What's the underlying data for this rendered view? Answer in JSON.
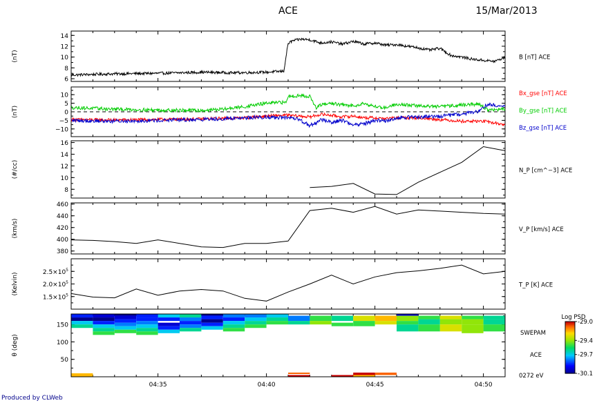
{
  "header": {
    "title": "ACE",
    "date": "15/Mar/2013"
  },
  "footer": {
    "credit": "Produced by CLWeb"
  },
  "colors": {
    "black": "#000000",
    "red": "#ff0000",
    "green": "#00cc00",
    "blue": "#0000cc",
    "label_blue": "#00008b"
  },
  "x_axis": {
    "start_min": 31.0,
    "end_min": 51.0,
    "ticks": [
      {
        "t": 35,
        "label": "04:35"
      },
      {
        "t": 40,
        "label": "04:40"
      },
      {
        "t": 45,
        "label": "04:45"
      },
      {
        "t": 50,
        "label": "04:50"
      }
    ]
  },
  "chart_data": [
    {
      "type": "line",
      "id": "B",
      "ylabel": "(nT)",
      "right_label": "B [nT] ACE",
      "ylim": [
        5.5,
        14.8
      ],
      "yticks": [
        {
          "v": 6,
          "label": "6"
        },
        {
          "v": 8,
          "label": "8"
        },
        {
          "v": 10,
          "label": "10"
        },
        {
          "v": 12,
          "label": "12"
        },
        {
          "v": 14,
          "label": "14"
        }
      ],
      "series": [
        {
          "color": "#000000",
          "noise": 0.25,
          "x": [
            31.0,
            33.0,
            35.0,
            37.0,
            38.5,
            40.0,
            40.8,
            40.9,
            41.0,
            41.2,
            41.6,
            42.0,
            42.5,
            43.0,
            43.5,
            44.0,
            44.5,
            45.0,
            45.5,
            46.0,
            46.5,
            47.0,
            47.5,
            48.0,
            48.5,
            49.0,
            49.5,
            50.0,
            50.5,
            51.0
          ],
          "y": [
            6.7,
            6.9,
            7.0,
            7.2,
            7.1,
            7.2,
            7.4,
            10.0,
            12.5,
            13.0,
            13.3,
            13.2,
            12.6,
            12.8,
            12.4,
            12.9,
            12.4,
            12.6,
            12.2,
            12.3,
            12.0,
            11.7,
            11.3,
            11.6,
            10.3,
            10.0,
            9.6,
            9.4,
            9.2,
            9.9
          ]
        }
      ]
    },
    {
      "type": "line",
      "id": "Bgse",
      "ylabel": "(nT)",
      "ylim": [
        -14.5,
        14.5
      ],
      "yticks": [
        {
          "v": -10,
          "label": "−10"
        },
        {
          "v": -5,
          "label": "−5"
        },
        {
          "v": 0,
          "label": "0"
        },
        {
          "v": 5,
          "label": "5"
        },
        {
          "v": 10,
          "label": "10"
        }
      ],
      "zero_line": true,
      "series": [
        {
          "name": "Bx_gse [nT] ACE",
          "color": "#ff0000",
          "noise": 0.9,
          "x": [
            31.0,
            33.0,
            35.0,
            37.0,
            39.0,
            40.0,
            40.9,
            41.5,
            42.0,
            42.5,
            43.0,
            43.5,
            44.0,
            44.5,
            45.0,
            45.5,
            46.0,
            47.0,
            48.0,
            49.0,
            50.0,
            50.5,
            51.0
          ],
          "y": [
            -4.5,
            -4.8,
            -4.5,
            -4.2,
            -3.5,
            -2.5,
            -2.0,
            -2.5,
            -3.0,
            -1.5,
            -2.0,
            -3.0,
            -2.5,
            -3.5,
            -3.5,
            -4.0,
            -3.5,
            -3.5,
            -4.5,
            -5.5,
            -5.5,
            -6.5,
            -7.5
          ]
        },
        {
          "name": "By_gse [nT] ACE",
          "color": "#00cc00",
          "noise": 1.0,
          "x": [
            31.0,
            33.0,
            35.0,
            37.0,
            38.0,
            39.0,
            40.0,
            40.9,
            41.0,
            41.5,
            42.0,
            42.3,
            42.5,
            43.0,
            43.5,
            44.0,
            44.5,
            45.0,
            45.5,
            46.0,
            47.0,
            48.0,
            49.0,
            49.8,
            50.2,
            51.0
          ],
          "y": [
            2.5,
            1.5,
            1.0,
            0.8,
            1.5,
            3.0,
            5.0,
            5.5,
            9.0,
            9.5,
            9.0,
            2.0,
            4.0,
            5.0,
            4.0,
            3.5,
            5.0,
            3.0,
            2.5,
            4.5,
            3.5,
            3.0,
            4.0,
            4.5,
            1.0,
            1.5
          ]
        },
        {
          "name": "Bz_gse [nT] ACE",
          "color": "#0000cc",
          "noise": 1.1,
          "x": [
            31.0,
            33.0,
            35.0,
            37.0,
            39.0,
            40.0,
            40.9,
            41.5,
            42.0,
            42.3,
            42.5,
            43.0,
            43.5,
            44.0,
            44.5,
            45.0,
            45.5,
            46.0,
            47.0,
            48.0,
            49.0,
            49.8,
            50.2,
            51.0
          ],
          "y": [
            -5.0,
            -5.5,
            -5.0,
            -4.5,
            -3.5,
            -3.0,
            -3.5,
            -4.5,
            -8.0,
            -6.5,
            -4.5,
            -6.0,
            -5.0,
            -7.5,
            -7.0,
            -5.0,
            -5.5,
            -3.5,
            -3.0,
            -2.5,
            -1.5,
            0.5,
            4.5,
            3.0
          ]
        }
      ]
    },
    {
      "type": "line",
      "id": "NP",
      "ylabel": "(#/cc)",
      "right_label": "N_P [cm^−3] ACE",
      "ylim": [
        6.5,
        16.3
      ],
      "yticks": [
        {
          "v": 8,
          "label": "8"
        },
        {
          "v": 10,
          "label": "10"
        },
        {
          "v": 12,
          "label": "12"
        },
        {
          "v": 14,
          "label": "14"
        },
        {
          "v": 16,
          "label": "16"
        }
      ],
      "series": [
        {
          "color": "#000000",
          "noise": 0,
          "x": [
            42.0,
            43.0,
            44.0,
            45.0,
            46.0,
            47.0,
            48.0,
            49.0,
            50.0,
            51.0
          ],
          "y": [
            8.3,
            8.5,
            9.0,
            7.2,
            7.1,
            9.2,
            10.9,
            12.6,
            15.3,
            14.6
          ]
        }
      ]
    },
    {
      "type": "line",
      "id": "VP",
      "ylabel": "(km/s)",
      "right_label": "V_P [km/s] ACE",
      "ylim": [
        375,
        462
      ],
      "yticks": [
        {
          "v": 380,
          "label": "380"
        },
        {
          "v": 400,
          "label": "400"
        },
        {
          "v": 420,
          "label": "420"
        },
        {
          "v": 440,
          "label": "440"
        },
        {
          "v": 460,
          "label": "460"
        }
      ],
      "series": [
        {
          "color": "#000000",
          "noise": 0,
          "x": [
            31.0,
            32.0,
            33.0,
            34.0,
            35.0,
            36.0,
            37.0,
            38.0,
            39.0,
            40.0,
            41.0,
            42.0,
            43.0,
            44.0,
            45.0,
            46.0,
            47.0,
            48.0,
            49.0,
            50.0,
            51.0
          ],
          "y": [
            399,
            398,
            396,
            393,
            399,
            393,
            387,
            386,
            393,
            393,
            397,
            449,
            453,
            446,
            456,
            443,
            450,
            448,
            446,
            444,
            443
          ]
        }
      ]
    },
    {
      "type": "line",
      "id": "TP",
      "ylabel": "(Kelvin)",
      "right_label": "T_P [K] ACE",
      "ylim": [
        100000,
        300000
      ],
      "yticks": [
        {
          "v": 150000,
          "label": "1.5×10",
          "exp": "5"
        },
        {
          "v": 200000,
          "label": "2.0×10",
          "exp": "5"
        },
        {
          "v": 250000,
          "label": "2.5×10",
          "exp": "5"
        }
      ],
      "series": [
        {
          "color": "#000000",
          "noise": 0,
          "x": [
            31.0,
            32.0,
            33.0,
            34.0,
            35.0,
            36.0,
            37.0,
            38.0,
            39.0,
            40.0,
            41.0,
            42.0,
            43.0,
            44.0,
            45.0,
            46.0,
            47.0,
            48.0,
            49.0,
            50.0,
            51.0
          ],
          "y": [
            162000,
            148000,
            145000,
            180000,
            155000,
            172000,
            178000,
            172000,
            143000,
            132000,
            168000,
            200000,
            235000,
            200000,
            228000,
            245000,
            252000,
            262000,
            275000,
            240000,
            250000
          ]
        }
      ]
    },
    {
      "type": "heatmap",
      "id": "SWEPAM",
      "ylabel": "θ (deg)",
      "right_label": "SWEPAM",
      "right_label2": "ACE",
      "energy_label": "0272 eV",
      "ylim": [
        0,
        180
      ],
      "yticks": [
        {
          "v": 50,
          "label": "50"
        },
        {
          "v": 100,
          "label": "100"
        },
        {
          "v": 150,
          "label": "150"
        }
      ],
      "colorbar": {
        "title": "Log PSD",
        "min": -30.1,
        "max": -29.0,
        "ticks": [
          {
            "v": -29.0,
            "label": "-29.0"
          },
          {
            "v": -29.4,
            "label": "-29.4"
          },
          {
            "v": -29.7,
            "label": "-29.7"
          },
          {
            "v": -30.1,
            "label": "-30.1"
          }
        ]
      },
      "columns": [
        31.0,
        32.0,
        33.0,
        34.0,
        35.0,
        36.0,
        37.0,
        38.0,
        39.0,
        40.0,
        41.0,
        42.0,
        43.0,
        44.0,
        45.0,
        46.0,
        47.0,
        48.0,
        49.0,
        50.0,
        51.0
      ],
      "cells": [
        {
          "c": 0,
          "th0": 160,
          "th1": 170,
          "v": -30.1
        },
        {
          "c": 0,
          "th0": 170,
          "th1": 180,
          "v": -29.9
        },
        {
          "c": 0,
          "th0": 150,
          "th1": 160,
          "v": -29.7
        },
        {
          "c": 0,
          "th0": 140,
          "th1": 150,
          "v": -29.6
        },
        {
          "c": 0,
          "th0": 0,
          "th1": 10,
          "v": -29.2
        },
        {
          "c": 1,
          "th0": 170,
          "th1": 180,
          "v": -30.0
        },
        {
          "c": 1,
          "th0": 160,
          "th1": 170,
          "v": -30.1
        },
        {
          "c": 1,
          "th0": 150,
          "th1": 160,
          "v": -29.9
        },
        {
          "c": 1,
          "th0": 140,
          "th1": 150,
          "v": -29.7
        },
        {
          "c": 1,
          "th0": 130,
          "th1": 140,
          "v": -29.6
        },
        {
          "c": 1,
          "th0": 120,
          "th1": 130,
          "v": -29.5
        },
        {
          "c": 2,
          "th0": 175,
          "th1": 180,
          "v": -30.2
        },
        {
          "c": 2,
          "th0": 165,
          "th1": 175,
          "v": -30.0
        },
        {
          "c": 2,
          "th0": 155,
          "th1": 165,
          "v": -29.9
        },
        {
          "c": 2,
          "th0": 145,
          "th1": 155,
          "v": -29.8
        },
        {
          "c": 2,
          "th0": 135,
          "th1": 145,
          "v": -29.7
        },
        {
          "c": 2,
          "th0": 125,
          "th1": 135,
          "v": -29.5
        },
        {
          "c": 3,
          "th0": 170,
          "th1": 180,
          "v": -29.9
        },
        {
          "c": 3,
          "th0": 160,
          "th1": 170,
          "v": -29.9
        },
        {
          "c": 3,
          "th0": 150,
          "th1": 160,
          "v": -29.8
        },
        {
          "c": 3,
          "th0": 140,
          "th1": 150,
          "v": -29.7
        },
        {
          "c": 3,
          "th0": 130,
          "th1": 140,
          "v": -29.6
        },
        {
          "c": 3,
          "th0": 120,
          "th1": 130,
          "v": -29.5
        },
        {
          "c": 4,
          "th0": 170,
          "th1": 180,
          "v": -29.7
        },
        {
          "c": 4,
          "th0": 160,
          "th1": 170,
          "v": -29.9
        },
        {
          "c": 4,
          "th0": 145,
          "th1": 155,
          "v": -30.0
        },
        {
          "c": 4,
          "th0": 135,
          "th1": 145,
          "v": -29.9
        },
        {
          "c": 4,
          "th0": 125,
          "th1": 135,
          "v": -29.7
        },
        {
          "c": 5,
          "th0": 170,
          "th1": 180,
          "v": -29.6
        },
        {
          "c": 5,
          "th0": 160,
          "th1": 170,
          "v": -29.8
        },
        {
          "c": 5,
          "th0": 150,
          "th1": 160,
          "v": -29.9
        },
        {
          "c": 5,
          "th0": 140,
          "th1": 150,
          "v": -29.8
        },
        {
          "c": 5,
          "th0": 130,
          "th1": 140,
          "v": -29.6
        },
        {
          "c": 6,
          "th0": 175,
          "th1": 180,
          "v": -30.2
        },
        {
          "c": 6,
          "th0": 165,
          "th1": 175,
          "v": -29.9
        },
        {
          "c": 6,
          "th0": 155,
          "th1": 165,
          "v": -30.1
        },
        {
          "c": 6,
          "th0": 145,
          "th1": 155,
          "v": -29.9
        },
        {
          "c": 6,
          "th0": 135,
          "th1": 145,
          "v": -29.7
        },
        {
          "c": 7,
          "th0": 170,
          "th1": 180,
          "v": -29.8
        },
        {
          "c": 7,
          "th0": 160,
          "th1": 170,
          "v": -29.9
        },
        {
          "c": 7,
          "th0": 150,
          "th1": 160,
          "v": -29.7
        },
        {
          "c": 7,
          "th0": 140,
          "th1": 150,
          "v": -29.6
        },
        {
          "c": 7,
          "th0": 130,
          "th1": 140,
          "v": -29.5
        },
        {
          "c": 8,
          "th0": 170,
          "th1": 180,
          "v": -29.8
        },
        {
          "c": 8,
          "th0": 160,
          "th1": 170,
          "v": -29.7
        },
        {
          "c": 8,
          "th0": 150,
          "th1": 160,
          "v": -29.6
        },
        {
          "c": 8,
          "th0": 140,
          "th1": 150,
          "v": -29.5
        },
        {
          "c": 9,
          "th0": 170,
          "th1": 180,
          "v": -29.7
        },
        {
          "c": 9,
          "th0": 160,
          "th1": 170,
          "v": -29.6
        },
        {
          "c": 9,
          "th0": 150,
          "th1": 160,
          "v": -29.5
        },
        {
          "c": 10,
          "th0": 160,
          "th1": 175,
          "v": -29.8
        },
        {
          "c": 10,
          "th0": 150,
          "th1": 160,
          "v": -29.6
        },
        {
          "c": 10,
          "th0": 8,
          "th1": 12,
          "v": -29.1
        },
        {
          "c": 10,
          "th0": 0,
          "th1": 5,
          "v": -29.0
        },
        {
          "c": 11,
          "th0": 160,
          "th1": 175,
          "v": -29.5
        },
        {
          "c": 11,
          "th0": 150,
          "th1": 160,
          "v": -29.4
        },
        {
          "c": 12,
          "th0": 160,
          "th1": 175,
          "v": -29.6
        },
        {
          "c": 12,
          "th0": 145,
          "th1": 155,
          "v": -29.5
        },
        {
          "c": 12,
          "th0": 0,
          "th1": 5,
          "v": -28.9
        },
        {
          "c": 13,
          "th0": 160,
          "th1": 175,
          "v": -29.3
        },
        {
          "c": 13,
          "th0": 145,
          "th1": 160,
          "v": -29.5
        },
        {
          "c": 13,
          "th0": 5,
          "th1": 12,
          "v": -29.0
        },
        {
          "c": 13,
          "th0": 0,
          "th1": 5,
          "v": -29.2
        },
        {
          "c": 14,
          "th0": 160,
          "th1": 175,
          "v": -29.2
        },
        {
          "c": 14,
          "th0": 150,
          "th1": 160,
          "v": -29.3
        },
        {
          "c": 14,
          "th0": 5,
          "th1": 12,
          "v": -29.1
        },
        {
          "c": 15,
          "th0": 175,
          "th1": 180,
          "v": -30.0
        },
        {
          "c": 15,
          "th0": 160,
          "th1": 175,
          "v": -29.4
        },
        {
          "c": 15,
          "th0": 150,
          "th1": 160,
          "v": -29.5
        },
        {
          "c": 15,
          "th0": 130,
          "th1": 150,
          "v": -29.6
        },
        {
          "c": 16,
          "th0": 165,
          "th1": 175,
          "v": -29.5
        },
        {
          "c": 16,
          "th0": 150,
          "th1": 165,
          "v": -29.6
        },
        {
          "c": 16,
          "th0": 130,
          "th1": 150,
          "v": -29.5
        },
        {
          "c": 17,
          "th0": 165,
          "th1": 175,
          "v": -29.3
        },
        {
          "c": 17,
          "th0": 150,
          "th1": 165,
          "v": -29.4
        },
        {
          "c": 17,
          "th0": 130,
          "th1": 150,
          "v": -29.3
        },
        {
          "c": 18,
          "th0": 165,
          "th1": 175,
          "v": -29.5
        },
        {
          "c": 18,
          "th0": 150,
          "th1": 165,
          "v": -29.4
        },
        {
          "c": 18,
          "th0": 125,
          "th1": 150,
          "v": -29.4
        },
        {
          "c": 19,
          "th0": 165,
          "th1": 175,
          "v": -29.6
        },
        {
          "c": 19,
          "th0": 150,
          "th1": 165,
          "v": -29.6
        },
        {
          "c": 19,
          "th0": 130,
          "th1": 150,
          "v": -29.5
        }
      ]
    }
  ]
}
